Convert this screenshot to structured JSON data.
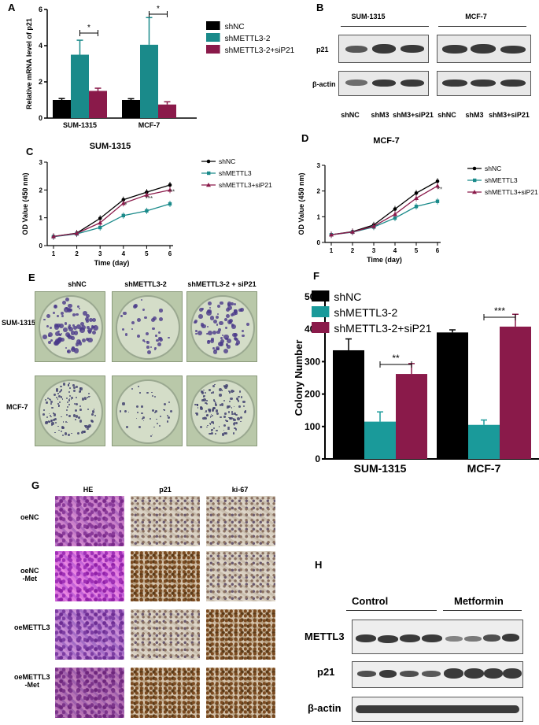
{
  "panels": {
    "A": "A",
    "B": "B",
    "C": "C",
    "D": "D",
    "E": "E",
    "F": "F",
    "G": "G",
    "H": "H"
  },
  "chart_data": [
    {
      "id": "A",
      "type": "bar",
      "categories": [
        "SUM-1315",
        "MCF-7"
      ],
      "series": [
        {
          "name": "shNC",
          "values": [
            1.0,
            1.0
          ],
          "errors": [
            0.08,
            0.07
          ],
          "color": "#000000"
        },
        {
          "name": "shMETTL3-2",
          "values": [
            3.5,
            4.05
          ],
          "errors": [
            0.8,
            1.5
          ],
          "color": "#1a8a8a"
        },
        {
          "name": "shMETTL3-2+siP21",
          "values": [
            1.5,
            0.75
          ],
          "errors": [
            0.15,
            0.15
          ],
          "color": "#8a1a4a"
        }
      ],
      "ylabel": "Relative  mRNA level of p21",
      "ylim": [
        0,
        6
      ],
      "yticks": [
        "0",
        "2",
        "4",
        "6"
      ],
      "significance": [
        "*",
        "*"
      ]
    },
    {
      "id": "C",
      "type": "line",
      "title": "SUM-1315",
      "xlabel": "Time (day)",
      "ylabel": "OD  Value (450 nm)",
      "x": [
        1,
        2,
        3,
        4,
        5,
        6
      ],
      "ylim": [
        0,
        3
      ],
      "yticks": [
        "0",
        "1",
        "2",
        "3"
      ],
      "series": [
        {
          "name": "shNC",
          "values": [
            0.33,
            0.45,
            0.98,
            1.65,
            1.92,
            2.18
          ],
          "color": "#000000",
          "marker": "circle"
        },
        {
          "name": "shMETTL3",
          "values": [
            0.32,
            0.42,
            0.65,
            1.08,
            1.25,
            1.5
          ],
          "color": "#1a8a8a",
          "marker": "square"
        },
        {
          "name": "shMETTL3+siP21",
          "values": [
            0.33,
            0.44,
            0.82,
            1.52,
            1.82,
            2.0
          ],
          "color": "#8a1a4a",
          "marker": "triangle"
        }
      ],
      "significance": [
        "*",
        "***",
        "**"
      ]
    },
    {
      "id": "D",
      "type": "line",
      "title": "MCF-7",
      "xlabel": "Time (day)",
      "ylabel": "OD Value (450 nm)",
      "x": [
        1,
        2,
        3,
        4,
        5,
        6
      ],
      "ylim": [
        0,
        3
      ],
      "yticks": [
        "0",
        "1",
        "2",
        "3"
      ],
      "series": [
        {
          "name": "shNC",
          "values": [
            0.3,
            0.42,
            0.68,
            1.3,
            1.92,
            2.38
          ],
          "color": "#000000",
          "marker": "circle"
        },
        {
          "name": "shMETTL3",
          "values": [
            0.3,
            0.4,
            0.6,
            0.95,
            1.4,
            1.6
          ],
          "color": "#1a8a8a",
          "marker": "square"
        },
        {
          "name": "shMETTL3+siP21",
          "values": [
            0.3,
            0.41,
            0.63,
            1.1,
            1.72,
            2.2
          ],
          "color": "#8a1a4a",
          "marker": "triangle"
        }
      ],
      "significance": [
        "**"
      ]
    },
    {
      "id": "F",
      "type": "bar",
      "categories": [
        "SUM-1315",
        "MCF-7"
      ],
      "series": [
        {
          "name": "shNC",
          "values": [
            335,
            390
          ],
          "errors": [
            35,
            8
          ],
          "color": "#000000"
        },
        {
          "name": "shMETTL3-2",
          "values": [
            115,
            105
          ],
          "errors": [
            30,
            15
          ],
          "color": "#1a9a9a"
        },
        {
          "name": "shMETTL3-2+siP21",
          "values": [
            262,
            408
          ],
          "errors": [
            32,
            38
          ],
          "color": "#8a1a4a"
        }
      ],
      "ylabel": "Colony Number",
      "ylim": [
        0,
        500
      ],
      "yticks": [
        "0",
        "100",
        "200",
        "300",
        "400",
        "500"
      ],
      "significance": [
        "**",
        "***"
      ]
    }
  ],
  "blot_B": {
    "groups": [
      "SUM-1315",
      "MCF-7"
    ],
    "rows": [
      "p21",
      "β-actin"
    ],
    "lanes": [
      "shNC",
      "shM3",
      "shM3+siP21",
      "shNC",
      "shM3",
      "shM3+siP21"
    ]
  },
  "colony_E": {
    "columns": [
      "shNC",
      "shMETTL3-2",
      "shMETTL3-2 + siP21"
    ],
    "rows": [
      "SUM-1315",
      "MCF-7"
    ]
  },
  "histology_G": {
    "columns": [
      "HE",
      "p21",
      "ki-67"
    ],
    "rows": [
      "oeNC",
      "oeNC\n-Met",
      "oeMETTL3",
      "oeMETTL3\n-Met"
    ]
  },
  "blot_H": {
    "groups": [
      "Control",
      "Metformin"
    ],
    "rows": [
      "METTL3",
      "p21",
      "β-actin"
    ]
  }
}
